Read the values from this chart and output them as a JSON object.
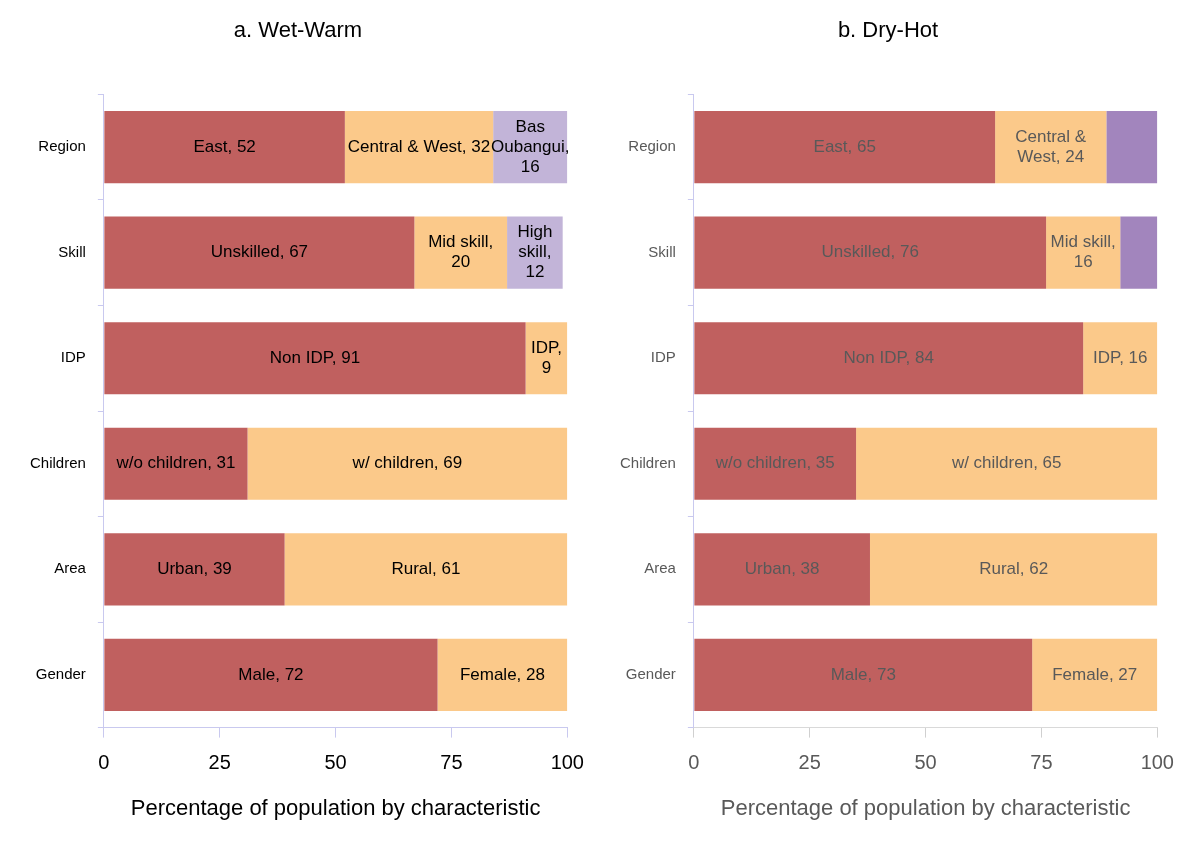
{
  "chart_data": [
    {
      "type": "bar",
      "orientation": "horizontal",
      "stacked": true,
      "title": "a. Wet-Warm",
      "xlabel": "Percentage of population by characteristic",
      "categories": [
        "Region",
        "Skill",
        "IDP",
        "Children",
        "Area",
        "Gender"
      ],
      "xlim": [
        0,
        100
      ],
      "xticks": [
        0,
        25,
        50,
        75,
        100
      ],
      "legend": false,
      "series": [
        {
          "color": "#c0605f",
          "values": [
            52,
            67,
            91,
            31,
            39,
            72
          ],
          "value_labels": [
            "East, 52",
            "Unskilled, 67",
            "Non IDP, 91",
            "w/o children, 31",
            "Urban, 39",
            "Male, 72"
          ]
        },
        {
          "color": "#fbc98a",
          "values": [
            32,
            20,
            9,
            69,
            61,
            28
          ],
          "value_labels": [
            "Central & West, 32",
            "Mid skill, 20",
            "IDP, 9",
            "w/ children, 69",
            "Rural, 61",
            "Female, 28"
          ]
        },
        {
          "color": "#c2b4d8",
          "values": [
            16,
            12,
            null,
            null,
            null,
            null
          ],
          "value_labels": [
            "Bas Oubangui, 16",
            "High skill, 12",
            null,
            null,
            null,
            null
          ]
        }
      ]
    },
    {
      "type": "bar",
      "orientation": "horizontal",
      "stacked": true,
      "title": "b. Dry-Hot",
      "xlabel": "Percentage of population by characteristic",
      "categories": [
        "Region",
        "Skill",
        "IDP",
        "Children",
        "Area",
        "Gender"
      ],
      "xlim": [
        0,
        100
      ],
      "xticks": [
        0,
        25,
        50,
        75,
        100
      ],
      "legend": false,
      "series": [
        {
          "color": "#c0605f",
          "values": [
            65,
            76,
            84,
            35,
            38,
            73
          ],
          "value_labels": [
            "East, 65",
            "Unskilled, 76",
            "Non IDP, 84",
            "w/o children, 35",
            "Urban, 38",
            "Male, 73"
          ]
        },
        {
          "color": "#fbc98a",
          "values": [
            24,
            16,
            16,
            65,
            62,
            27
          ],
          "value_labels": [
            "Central & West, 24",
            "Mid skill, 16",
            "IDP, 16",
            "w/ children, 65",
            "Rural, 62",
            "Female, 27"
          ]
        },
        {
          "color": "#a285bd",
          "values": [
            11,
            8,
            null,
            null,
            null,
            null
          ],
          "value_labels": [
            null,
            null,
            null,
            null,
            null,
            null
          ]
        }
      ]
    }
  ]
}
